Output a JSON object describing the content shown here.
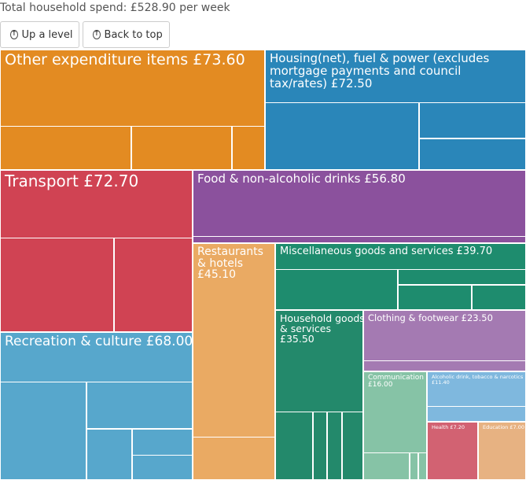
{
  "header": {
    "total_label": "Total household spend: £528.90 per week",
    "up_button": "Up a level",
    "top_button": "Back to top",
    "up_icon": "arrow-up-circle-icon",
    "top_icon": "arrow-up-circle-icon"
  },
  "chart_data": {
    "type": "treemap",
    "categories": [
      {
        "label": "Other expenditure items £73.60",
        "value": 73.6,
        "color": "#e38b22"
      },
      {
        "label": "Housing(net), fuel & power (excludes mortgage payments and council tax/rates) £72.50",
        "value": 72.5,
        "color": "#2a86b9"
      },
      {
        "label": "Transport £72.70",
        "value": 72.7,
        "color": "#d04353"
      },
      {
        "label": "Food & non-alcoholic drinks £56.80",
        "value": 56.8,
        "color": "#8b519d"
      },
      {
        "label": "Recreation & culture £68.00",
        "value": 68.0,
        "color": "#57a7cc"
      },
      {
        "label": "Restaurants & hotels £45.10",
        "value": 45.1,
        "color": "#eaaa63"
      },
      {
        "label": "Miscellaneous goods and services £39.70",
        "value": 39.7,
        "color": "#1e8c6e"
      },
      {
        "label": "Household goods & services £35.50",
        "value": 35.5,
        "color": "#23896b"
      },
      {
        "label": "Clothing & footwear £23.50",
        "value": 23.5,
        "color": "#a47ab2"
      },
      {
        "label": "Communication £16.00",
        "value": 16.0,
        "color": "#86c3a6"
      },
      {
        "label": "Alcoholic drink, tobacco & narcotics £11.40",
        "value": 11.4,
        "color": "#7fb8de"
      },
      {
        "label": "Health £7.20",
        "value": 7.2,
        "color": "#d26272"
      },
      {
        "label": "Education £7.00",
        "value": 7.0,
        "color": "#e7b282"
      }
    ]
  }
}
